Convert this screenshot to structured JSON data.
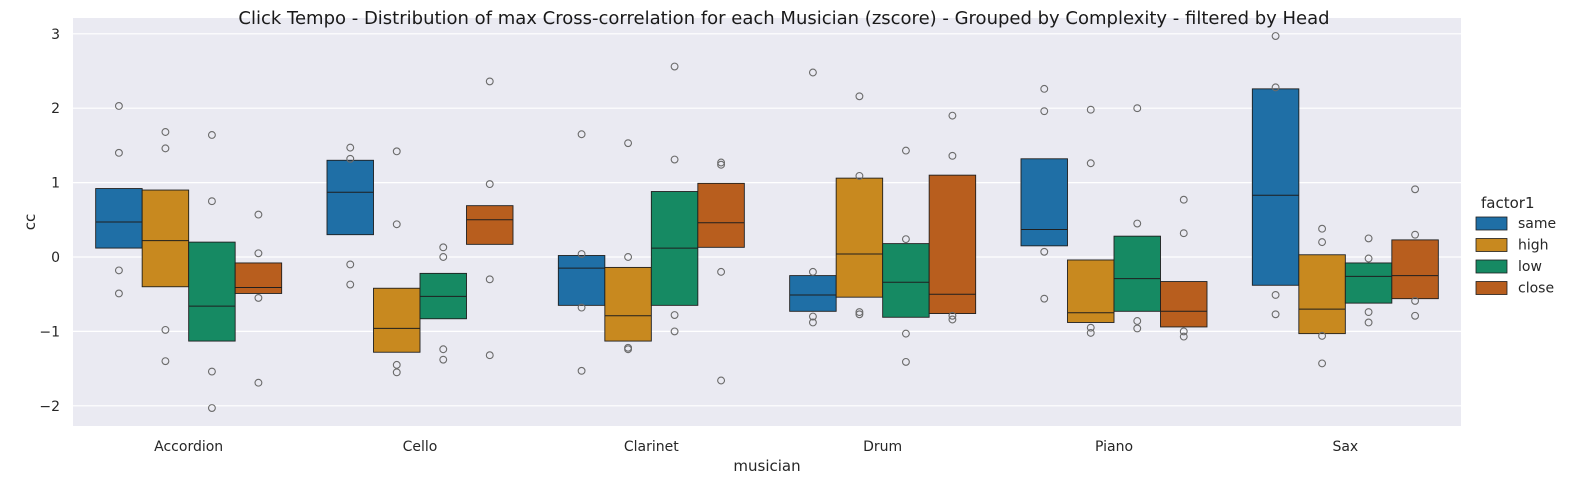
{
  "chart_data": {
    "type": "box",
    "title": "Click Tempo - Distribution of max Cross-correlation for each Musician (zscore) - Grouped by Complexity - filtered by Head",
    "xlabel": "musician",
    "ylabel": "cc",
    "ylim": [
      -2.25,
      3.2
    ],
    "yticks": [
      -2,
      -1,
      0,
      1,
      2,
      3
    ],
    "grid": true,
    "legend_title": "factor1",
    "legend_position": "right",
    "categories": [
      "Accordion",
      "Cello",
      "Clarinet",
      "Drum",
      "Piano",
      "Sax"
    ],
    "series": [
      {
        "name": "same",
        "color": "#1f6fa6",
        "boxes": [
          {
            "q1": 0.12,
            "median": 0.47,
            "q3": 0.92,
            "outliers": [
              2.03,
              1.4,
              -0.18,
              -0.49
            ]
          },
          {
            "q1": 0.3,
            "median": 0.87,
            "q3": 1.3,
            "outliers": [
              1.47,
              1.32,
              -0.1,
              -0.37
            ]
          },
          {
            "q1": -0.65,
            "median": -0.15,
            "q3": 0.02,
            "outliers": [
              1.65,
              0.04,
              -0.68,
              -1.53
            ]
          },
          {
            "q1": -0.73,
            "median": -0.51,
            "q3": -0.25,
            "outliers": [
              2.48,
              -0.2,
              -0.8,
              -0.88
            ]
          },
          {
            "q1": 0.15,
            "median": 0.37,
            "q3": 1.32,
            "outliers": [
              2.26,
              1.96,
              0.07,
              -0.56
            ]
          },
          {
            "q1": -0.38,
            "median": 0.83,
            "q3": 2.26,
            "outliers": [
              2.97,
              2.28,
              -0.51,
              -0.77
            ]
          }
        ]
      },
      {
        "name": "high",
        "color": "#c8891f",
        "boxes": [
          {
            "q1": -0.4,
            "median": 0.22,
            "q3": 0.9,
            "outliers": [
              1.68,
              1.46,
              -0.98,
              -1.4
            ]
          },
          {
            "q1": -1.28,
            "median": -0.96,
            "q3": -0.42,
            "outliers": [
              1.42,
              0.44,
              -1.45,
              -1.55
            ]
          },
          {
            "q1": -1.13,
            "median": -0.79,
            "q3": -0.14,
            "outliers": [
              1.53,
              0.0,
              -1.22,
              -1.24
            ]
          },
          {
            "q1": -0.54,
            "median": 0.04,
            "q3": 1.06,
            "outliers": [
              2.16,
              1.09,
              -0.74,
              -0.77
            ]
          },
          {
            "q1": -0.88,
            "median": -0.75,
            "q3": -0.04,
            "outliers": [
              1.98,
              1.26,
              -0.95,
              -1.02
            ]
          },
          {
            "q1": -1.03,
            "median": -0.7,
            "q3": 0.03,
            "outliers": [
              0.38,
              0.2,
              -1.06,
              -1.43
            ]
          }
        ]
      },
      {
        "name": "low",
        "color": "#168a63",
        "boxes": [
          {
            "q1": -1.13,
            "median": -0.66,
            "q3": 0.2,
            "outliers": [
              1.64,
              0.75,
              -1.54,
              -2.03
            ]
          },
          {
            "q1": -0.83,
            "median": -0.53,
            "q3": -0.22,
            "outliers": [
              0.13,
              0.0,
              -1.24,
              -1.38
            ]
          },
          {
            "q1": -0.65,
            "median": 0.12,
            "q3": 0.88,
            "outliers": [
              2.56,
              1.31,
              -0.78,
              -1.0
            ]
          },
          {
            "q1": -0.81,
            "median": -0.34,
            "q3": 0.18,
            "outliers": [
              1.43,
              0.24,
              -1.03,
              -1.41
            ]
          },
          {
            "q1": -0.73,
            "median": -0.29,
            "q3": 0.28,
            "outliers": [
              2.0,
              0.45,
              -0.86,
              -0.96
            ]
          },
          {
            "q1": -0.62,
            "median": -0.26,
            "q3": -0.08,
            "outliers": [
              0.25,
              -0.02,
              -0.74,
              -0.88
            ]
          }
        ]
      },
      {
        "name": "close",
        "color": "#b85e1e",
        "boxes": [
          {
            "q1": -0.49,
            "median": -0.41,
            "q3": -0.08,
            "outliers": [
              0.57,
              0.05,
              -0.55,
              -1.69
            ]
          },
          {
            "q1": 0.17,
            "median": 0.5,
            "q3": 0.69,
            "outliers": [
              2.36,
              0.98,
              -0.3,
              -1.32
            ]
          },
          {
            "q1": 0.13,
            "median": 0.46,
            "q3": 0.99,
            "outliers": [
              1.27,
              1.24,
              -0.2,
              -1.66
            ]
          },
          {
            "q1": -0.76,
            "median": -0.5,
            "q3": 1.1,
            "outliers": [
              1.9,
              1.36,
              -0.79,
              -0.84
            ]
          },
          {
            "q1": -0.94,
            "median": -0.73,
            "q3": -0.33,
            "outliers": [
              0.77,
              0.32,
              -1.0,
              -1.07
            ]
          },
          {
            "q1": -0.56,
            "median": -0.25,
            "q3": 0.23,
            "outliers": [
              0.91,
              0.3,
              -0.59,
              -0.79
            ]
          }
        ]
      }
    ]
  }
}
